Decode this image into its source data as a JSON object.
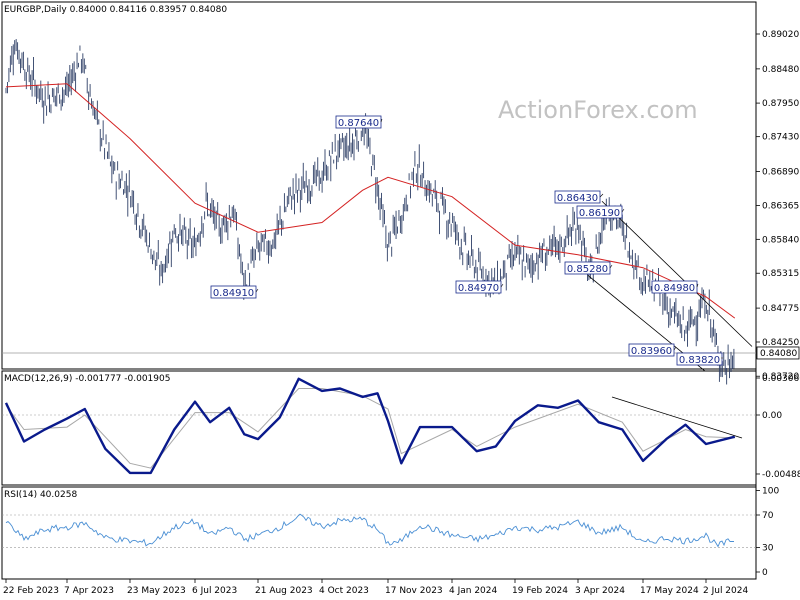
{
  "main": {
    "header": "EURGBP,Daily  0.84000 0.84116 0.83957 0.84080",
    "watermark": "ActionForex.com",
    "current_price": "0.84080",
    "price_ticks": [
      "0.89020",
      "0.88480",
      "0.87950",
      "0.87430",
      "0.86890",
      "0.86365",
      "0.85840",
      "0.85315",
      "0.84775",
      "0.84250",
      "0.83720"
    ]
  },
  "macd": {
    "header": "MACD(12,26,9) -0.001777 -0.001905",
    "ticks": [
      "0.003066",
      "0.00",
      "-0.004888"
    ]
  },
  "rsi": {
    "header": "RSI(14) 40.0258",
    "ticks": [
      "100",
      "70",
      "30",
      "0"
    ]
  },
  "x_axis": {
    "labels": [
      "22 Feb 2023",
      "7 Apr 2023",
      "23 May 2023",
      "6 Jul 2023",
      "21 Aug 2023",
      "4 Oct 2023",
      "17 Nov 2023",
      "4 Jan 2024",
      "19 Feb 2024",
      "3 Apr 2024",
      "17 May 2024",
      "2 Jul 2024"
    ]
  },
  "colors": {
    "bars": "#2e3f66",
    "ma": "#d42323",
    "macd": "#0a1a8c",
    "signal": "#a8a8a8",
    "rsi": "#4a8fd4",
    "label_border": "#1a2b8c",
    "grid": "#cfcfcf"
  },
  "chart_data": [
    {
      "type": "ohlc",
      "title": "EURGBP,Daily",
      "ylim": [
        0.8366,
        0.8932
      ],
      "ohlc_last": {
        "open": 0.84,
        "high": 0.84116,
        "low": 0.83957,
        "close": 0.8408
      },
      "moving_average": "red line",
      "close_path": [
        {
          "x": "22 Feb 2023",
          "y": 0.8815
        },
        {
          "x": "28 Feb 2023",
          "y": 0.889
        },
        {
          "x": "10 Mar 2023",
          "y": 0.884
        },
        {
          "x": "22 Mar 2023",
          "y": 0.88
        },
        {
          "x": "7 Apr 2023",
          "y": 0.8815
        },
        {
          "x": "17 Apr 2023",
          "y": 0.887
        },
        {
          "x": "27 Apr 2023",
          "y": 0.878
        },
        {
          "x": "10 May 2023",
          "y": 0.869
        },
        {
          "x": "23 May 2023",
          "y": 0.866
        },
        {
          "x": "1 Jun 2023",
          "y": 0.86
        },
        {
          "x": "13 Jun 2023",
          "y": 0.853
        },
        {
          "x": "22 Jun 2023",
          "y": 0.86
        },
        {
          "x": "6 Jul 2023",
          "y": 0.857
        },
        {
          "x": "14 Jul 2023",
          "y": 0.864
        },
        {
          "x": "24 Jul 2023",
          "y": 0.86
        },
        {
          "x": "3 Aug 2023",
          "y": 0.863
        },
        {
          "x": "11 Aug 2023",
          "y": 0.851
        },
        {
          "x": "21 Aug 2023",
          "y": 0.857
        },
        {
          "x": "1 Sep 2023",
          "y": 0.858
        },
        {
          "x": "12 Sep 2023",
          "y": 0.865
        },
        {
          "x": "25 Sep 2023",
          "y": 0.867
        },
        {
          "x": "4 Oct 2023",
          "y": 0.868
        },
        {
          "x": "13 Oct 2023",
          "y": 0.872
        },
        {
          "x": "24 Oct 2023",
          "y": 0.873
        },
        {
          "x": "31 Oct 2023",
          "y": 0.8764
        },
        {
          "x": "8 Nov 2023",
          "y": 0.869
        },
        {
          "x": "17 Nov 2023",
          "y": 0.857
        },
        {
          "x": "27 Nov 2023",
          "y": 0.862
        },
        {
          "x": "8 Dec 2023",
          "y": 0.87
        },
        {
          "x": "18 Dec 2023",
          "y": 0.866
        },
        {
          "x": "4 Jan 2024",
          "y": 0.861
        },
        {
          "x": "15 Jan 2024",
          "y": 0.856
        },
        {
          "x": "26 Jan 2024",
          "y": 0.853
        },
        {
          "x": "5 Feb 2024",
          "y": 0.8515
        },
        {
          "x": "19 Feb 2024",
          "y": 0.856
        },
        {
          "x": "28 Feb 2024",
          "y": 0.854
        },
        {
          "x": "8 Mar 2024",
          "y": 0.856
        },
        {
          "x": "20 Mar 2024",
          "y": 0.857
        },
        {
          "x": "3 Apr 2024",
          "y": 0.861
        },
        {
          "x": "11 Apr 2024",
          "y": 0.852
        },
        {
          "x": "23 Apr 2024",
          "y": 0.864
        },
        {
          "x": "3 May 2024",
          "y": 0.86
        },
        {
          "x": "17 May 2024",
          "y": 0.852
        },
        {
          "x": "28 May 2024",
          "y": 0.8505
        },
        {
          "x": "7 Jun 2024",
          "y": 0.847
        },
        {
          "x": "17 Jun 2024",
          "y": 0.844
        },
        {
          "x": "26 Jun 2024",
          "y": 0.847
        },
        {
          "x": "2 Jul 2024",
          "y": 0.849
        },
        {
          "x": "10 Jul 2024",
          "y": 0.841
        },
        {
          "x": "17 Jul 2024",
          "y": 0.8382
        },
        {
          "x": "23 Jul 2024",
          "y": 0.8408
        }
      ],
      "ma_path": [
        {
          "x": "22 Feb 2023",
          "y": 0.882
        },
        {
          "x": "7 Apr 2023",
          "y": 0.8825
        },
        {
          "x": "23 May 2023",
          "y": 0.874
        },
        {
          "x": "6 Jul 2023",
          "y": 0.864
        },
        {
          "x": "21 Aug 2023",
          "y": 0.8595
        },
        {
          "x": "4 Oct 2023",
          "y": 0.861
        },
        {
          "x": "31 Oct 2023",
          "y": 0.866
        },
        {
          "x": "17 Nov 2023",
          "y": 0.868
        },
        {
          "x": "4 Jan 2024",
          "y": 0.865
        },
        {
          "x": "19 Feb 2024",
          "y": 0.8575
        },
        {
          "x": "3 Apr 2024",
          "y": 0.856
        },
        {
          "x": "17 May 2024",
          "y": 0.854
        },
        {
          "x": "2 Jul 2024",
          "y": 0.8495
        },
        {
          "x": "23 Jul 2024",
          "y": 0.8462
        }
      ],
      "annotations": [
        {
          "text": "0.84910",
          "x": "6 Jul 2023",
          "y": 0.8491
        },
        {
          "text": "0.87640",
          "x": "31 Oct 2023",
          "y": 0.8764
        },
        {
          "text": "0.84970",
          "x": "4 Jan 2024",
          "y": 0.8497
        },
        {
          "text": "0.86430",
          "x": "3 Apr 2024",
          "y": 0.8643
        },
        {
          "text": "0.86190",
          "x": "11 Apr 2024",
          "y": 0.8619
        },
        {
          "text": "0.85280",
          "x": "11 Apr 2024",
          "y": 0.8528
        },
        {
          "text": "0.84980",
          "x": "17 May 2024",
          "y": 0.8498
        },
        {
          "text": "0.83960",
          "x": "17 Jun 2024",
          "y": 0.8396
        },
        {
          "text": "0.83820",
          "x": "2 Jul 2024",
          "y": 0.8382
        }
      ]
    },
    {
      "type": "line",
      "title": "MACD(12,26,9)",
      "ylim": [
        -0.0049,
        0.0031
      ],
      "values_last": {
        "macd": -0.001777,
        "signal": -0.001905
      },
      "series": [
        {
          "name": "MACD",
          "points": [
            {
              "x": "22 Feb 2023",
              "y": 0.001
            },
            {
              "x": "7 Mar 2023",
              "y": -0.0022
            },
            {
              "x": "22 Mar 2023",
              "y": -0.0012
            },
            {
              "x": "7 Apr 2023",
              "y": -0.0003
            },
            {
              "x": "20 Apr 2023",
              "y": 0.0005
            },
            {
              "x": "5 May 2023",
              "y": -0.0028
            },
            {
              "x": "23 May 2023",
              "y": -0.0048
            },
            {
              "x": "6 Jun 2023",
              "y": -0.0048
            },
            {
              "x": "22 Jun 2023",
              "y": -0.0012
            },
            {
              "x": "6 Jul 2023",
              "y": 0.0011
            },
            {
              "x": "17 Jul 2023",
              "y": -0.0006
            },
            {
              "x": "31 Jul 2023",
              "y": 0.0006
            },
            {
              "x": "11 Aug 2023",
              "y": -0.0016
            },
            {
              "x": "21 Aug 2023",
              "y": -0.002
            },
            {
              "x": "5 Sep 2023",
              "y": -0.0002
            },
            {
              "x": "18 Sep 2023",
              "y": 0.003
            },
            {
              "x": "4 Oct 2023",
              "y": 0.002
            },
            {
              "x": "16 Oct 2023",
              "y": 0.0022
            },
            {
              "x": "31 Oct 2023",
              "y": 0.0015
            },
            {
              "x": "10 Nov 2023",
              "y": 0.0018
            },
            {
              "x": "17 Nov 2023",
              "y": -0.0005
            },
            {
              "x": "27 Nov 2023",
              "y": -0.004
            },
            {
              "x": "11 Dec 2023",
              "y": -0.001
            },
            {
              "x": "4 Jan 2024",
              "y": -0.001
            },
            {
              "x": "22 Jan 2024",
              "y": -0.003
            },
            {
              "x": "5 Feb 2024",
              "y": -0.0026
            },
            {
              "x": "19 Feb 2024",
              "y": -0.0005
            },
            {
              "x": "6 Mar 2024",
              "y": 0.0008
            },
            {
              "x": "20 Mar 2024",
              "y": 0.0006
            },
            {
              "x": "3 Apr 2024",
              "y": 0.0012
            },
            {
              "x": "17 Apr 2024",
              "y": -0.0006
            },
            {
              "x": "3 May 2024",
              "y": -0.0012
            },
            {
              "x": "17 May 2024",
              "y": -0.0038
            },
            {
              "x": "3 Jun 2024",
              "y": -0.002
            },
            {
              "x": "17 Jun 2024",
              "y": -0.0008
            },
            {
              "x": "2 Jul 2024",
              "y": -0.0024
            },
            {
              "x": "23 Jul 2024",
              "y": -0.0018
            }
          ]
        },
        {
          "name": "Signal",
          "points": [
            {
              "x": "22 Feb 2023",
              "y": 0.0008
            },
            {
              "x": "7 Mar 2023",
              "y": -0.0012
            },
            {
              "x": "7 Apr 2023",
              "y": -0.001
            },
            {
              "x": "20 Apr 2023",
              "y": 0.0
            },
            {
              "x": "23 May 2023",
              "y": -0.004
            },
            {
              "x": "6 Jun 2023",
              "y": -0.0044
            },
            {
              "x": "6 Jul 2023",
              "y": 0.0002
            },
            {
              "x": "31 Jul 2023",
              "y": 0.0002
            },
            {
              "x": "21 Aug 2023",
              "y": -0.0014
            },
            {
              "x": "18 Sep 2023",
              "y": 0.0022
            },
            {
              "x": "4 Oct 2023",
              "y": 0.0022
            },
            {
              "x": "31 Oct 2023",
              "y": 0.0016
            },
            {
              "x": "17 Nov 2023",
              "y": 0.0005
            },
            {
              "x": "27 Nov 2023",
              "y": -0.0032
            },
            {
              "x": "4 Jan 2024",
              "y": -0.0012
            },
            {
              "x": "22 Jan 2024",
              "y": -0.0026
            },
            {
              "x": "19 Feb 2024",
              "y": -0.001
            },
            {
              "x": "3 Apr 2024",
              "y": 0.0009
            },
            {
              "x": "3 May 2024",
              "y": -0.0006
            },
            {
              "x": "17 May 2024",
              "y": -0.003
            },
            {
              "x": "17 Jun 2024",
              "y": -0.0012
            },
            {
              "x": "2 Jul 2024",
              "y": -0.0018
            },
            {
              "x": "23 Jul 2024",
              "y": -0.0019
            }
          ]
        }
      ]
    },
    {
      "type": "line",
      "title": "RSI(14)",
      "ylim": [
        0,
        100
      ],
      "values_last": {
        "rsi": 40.0258
      },
      "series": [
        {
          "name": "RSI(14)",
          "points": [
            {
              "x": "22 Feb 2023",
              "y": 62
            },
            {
              "x": "7 Mar 2023",
              "y": 40
            },
            {
              "x": "22 Mar 2023",
              "y": 52
            },
            {
              "x": "7 Apr 2023",
              "y": 55
            },
            {
              "x": "20 Apr 2023",
              "y": 60
            },
            {
              "x": "5 May 2023",
              "y": 42
            },
            {
              "x": "23 May 2023",
              "y": 38
            },
            {
              "x": "6 Jun 2023",
              "y": 35
            },
            {
              "x": "22 Jun 2023",
              "y": 55
            },
            {
              "x": "6 Jul 2023",
              "y": 62
            },
            {
              "x": "17 Jul 2023",
              "y": 45
            },
            {
              "x": "31 Jul 2023",
              "y": 55
            },
            {
              "x": "11 Aug 2023",
              "y": 40
            },
            {
              "x": "21 Aug 2023",
              "y": 45
            },
            {
              "x": "5 Sep 2023",
              "y": 55
            },
            {
              "x": "18 Sep 2023",
              "y": 68
            },
            {
              "x": "4 Oct 2023",
              "y": 56
            },
            {
              "x": "16 Oct 2023",
              "y": 63
            },
            {
              "x": "31 Oct 2023",
              "y": 65
            },
            {
              "x": "10 Nov 2023",
              "y": 52
            },
            {
              "x": "17 Nov 2023",
              "y": 35
            },
            {
              "x": "27 Nov 2023",
              "y": 38
            },
            {
              "x": "11 Dec 2023",
              "y": 58
            },
            {
              "x": "4 Jan 2024",
              "y": 45
            },
            {
              "x": "22 Jan 2024",
              "y": 40
            },
            {
              "x": "5 Feb 2024",
              "y": 45
            },
            {
              "x": "19 Feb 2024",
              "y": 55
            },
            {
              "x": "6 Mar 2024",
              "y": 52
            },
            {
              "x": "20 Mar 2024",
              "y": 55
            },
            {
              "x": "3 Apr 2024",
              "y": 62
            },
            {
              "x": "17 Apr 2024",
              "y": 48
            },
            {
              "x": "3 May 2024",
              "y": 55
            },
            {
              "x": "17 May 2024",
              "y": 35
            },
            {
              "x": "3 Jun 2024",
              "y": 42
            },
            {
              "x": "17 Jun 2024",
              "y": 38
            },
            {
              "x": "2 Jul 2024",
              "y": 45
            },
            {
              "x": "10 Jul 2024",
              "y": 32
            },
            {
              "x": "23 Jul 2024",
              "y": 40
            }
          ]
        }
      ]
    }
  ]
}
